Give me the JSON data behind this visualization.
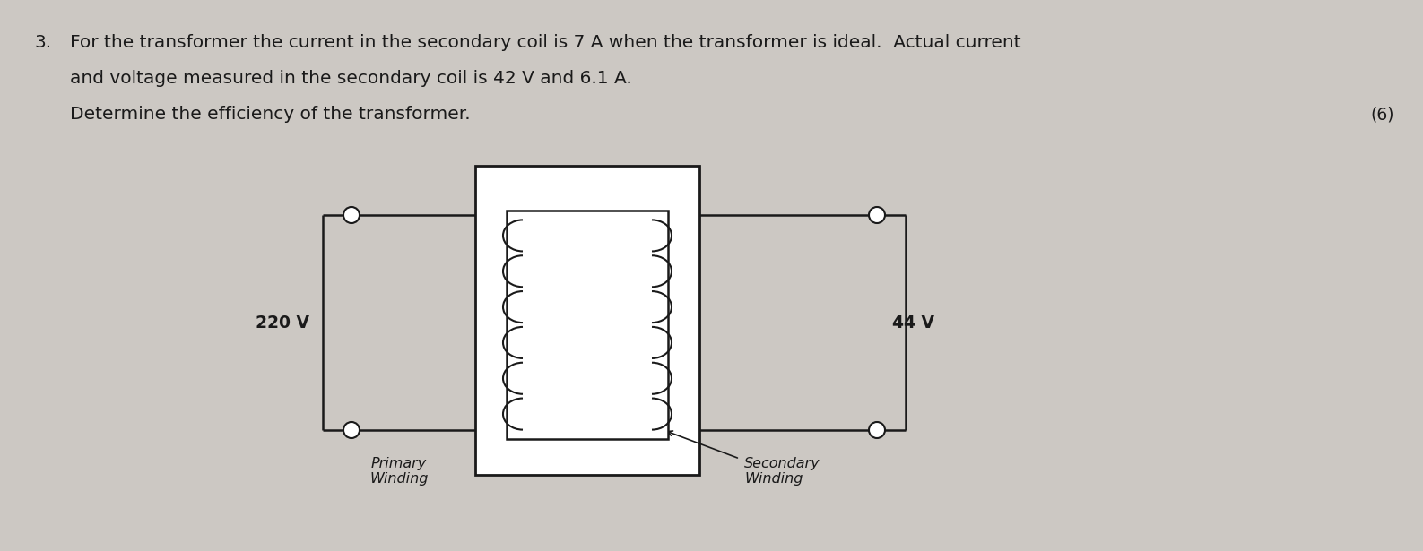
{
  "background_color": "#ccc8c3",
  "text_color": "#1a1a1a",
  "question_number": "3.",
  "line1": "For the transformer the current in the secondary coil is 7 A when the transformer is ideal.  Actual current",
  "line2": "and voltage measured in the secondary coil is 42 V and 6.1 A.",
  "line3": "Determine the efficiency of the transformer.",
  "marks": "(6)",
  "label_primary_voltage": "220 V",
  "label_secondary_voltage": "44 V",
  "label_primary_winding": "Primary\nWinding",
  "label_secondary_winding": "Secondary\nWinding",
  "font_size_text": 14.5,
  "font_size_labels": 13.5,
  "font_size_marks": 13.5,
  "font_size_winding": 11.5
}
